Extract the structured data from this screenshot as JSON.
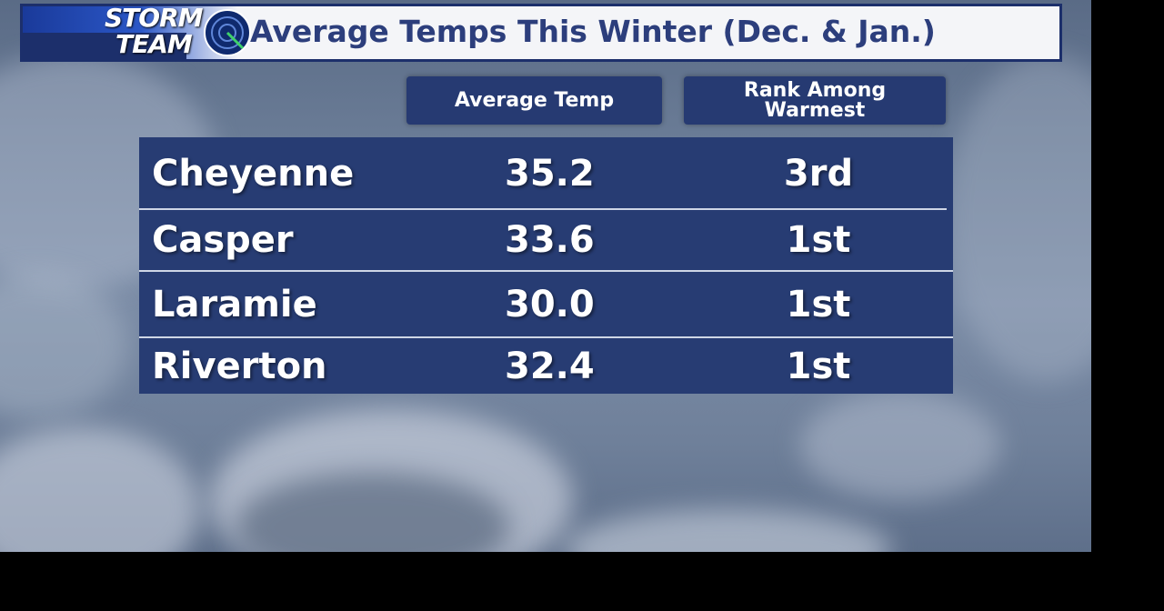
{
  "logo": {
    "line1": "STORM",
    "line2": "TEAM"
  },
  "title": "Average Temps This Winter (Dec. & Jan.)",
  "headers": {
    "average_temp": "Average Temp",
    "rank_line1": "Rank Among",
    "rank_line2": "Warmest"
  },
  "rows": [
    {
      "city": "Cheyenne",
      "temp": "35.2",
      "rank": "3rd"
    },
    {
      "city": "Casper",
      "temp": "33.6",
      "rank": "1st"
    },
    {
      "city": "Laramie",
      "temp": "30.0",
      "rank": "1st"
    },
    {
      "city": "Riverton",
      "temp": "32.4",
      "rank": "1st"
    }
  ],
  "colors": {
    "panel": "#273c73",
    "title_text": "#2c3e7c",
    "title_bg": "#f4f5f8",
    "sky": "#6d7f99"
  }
}
